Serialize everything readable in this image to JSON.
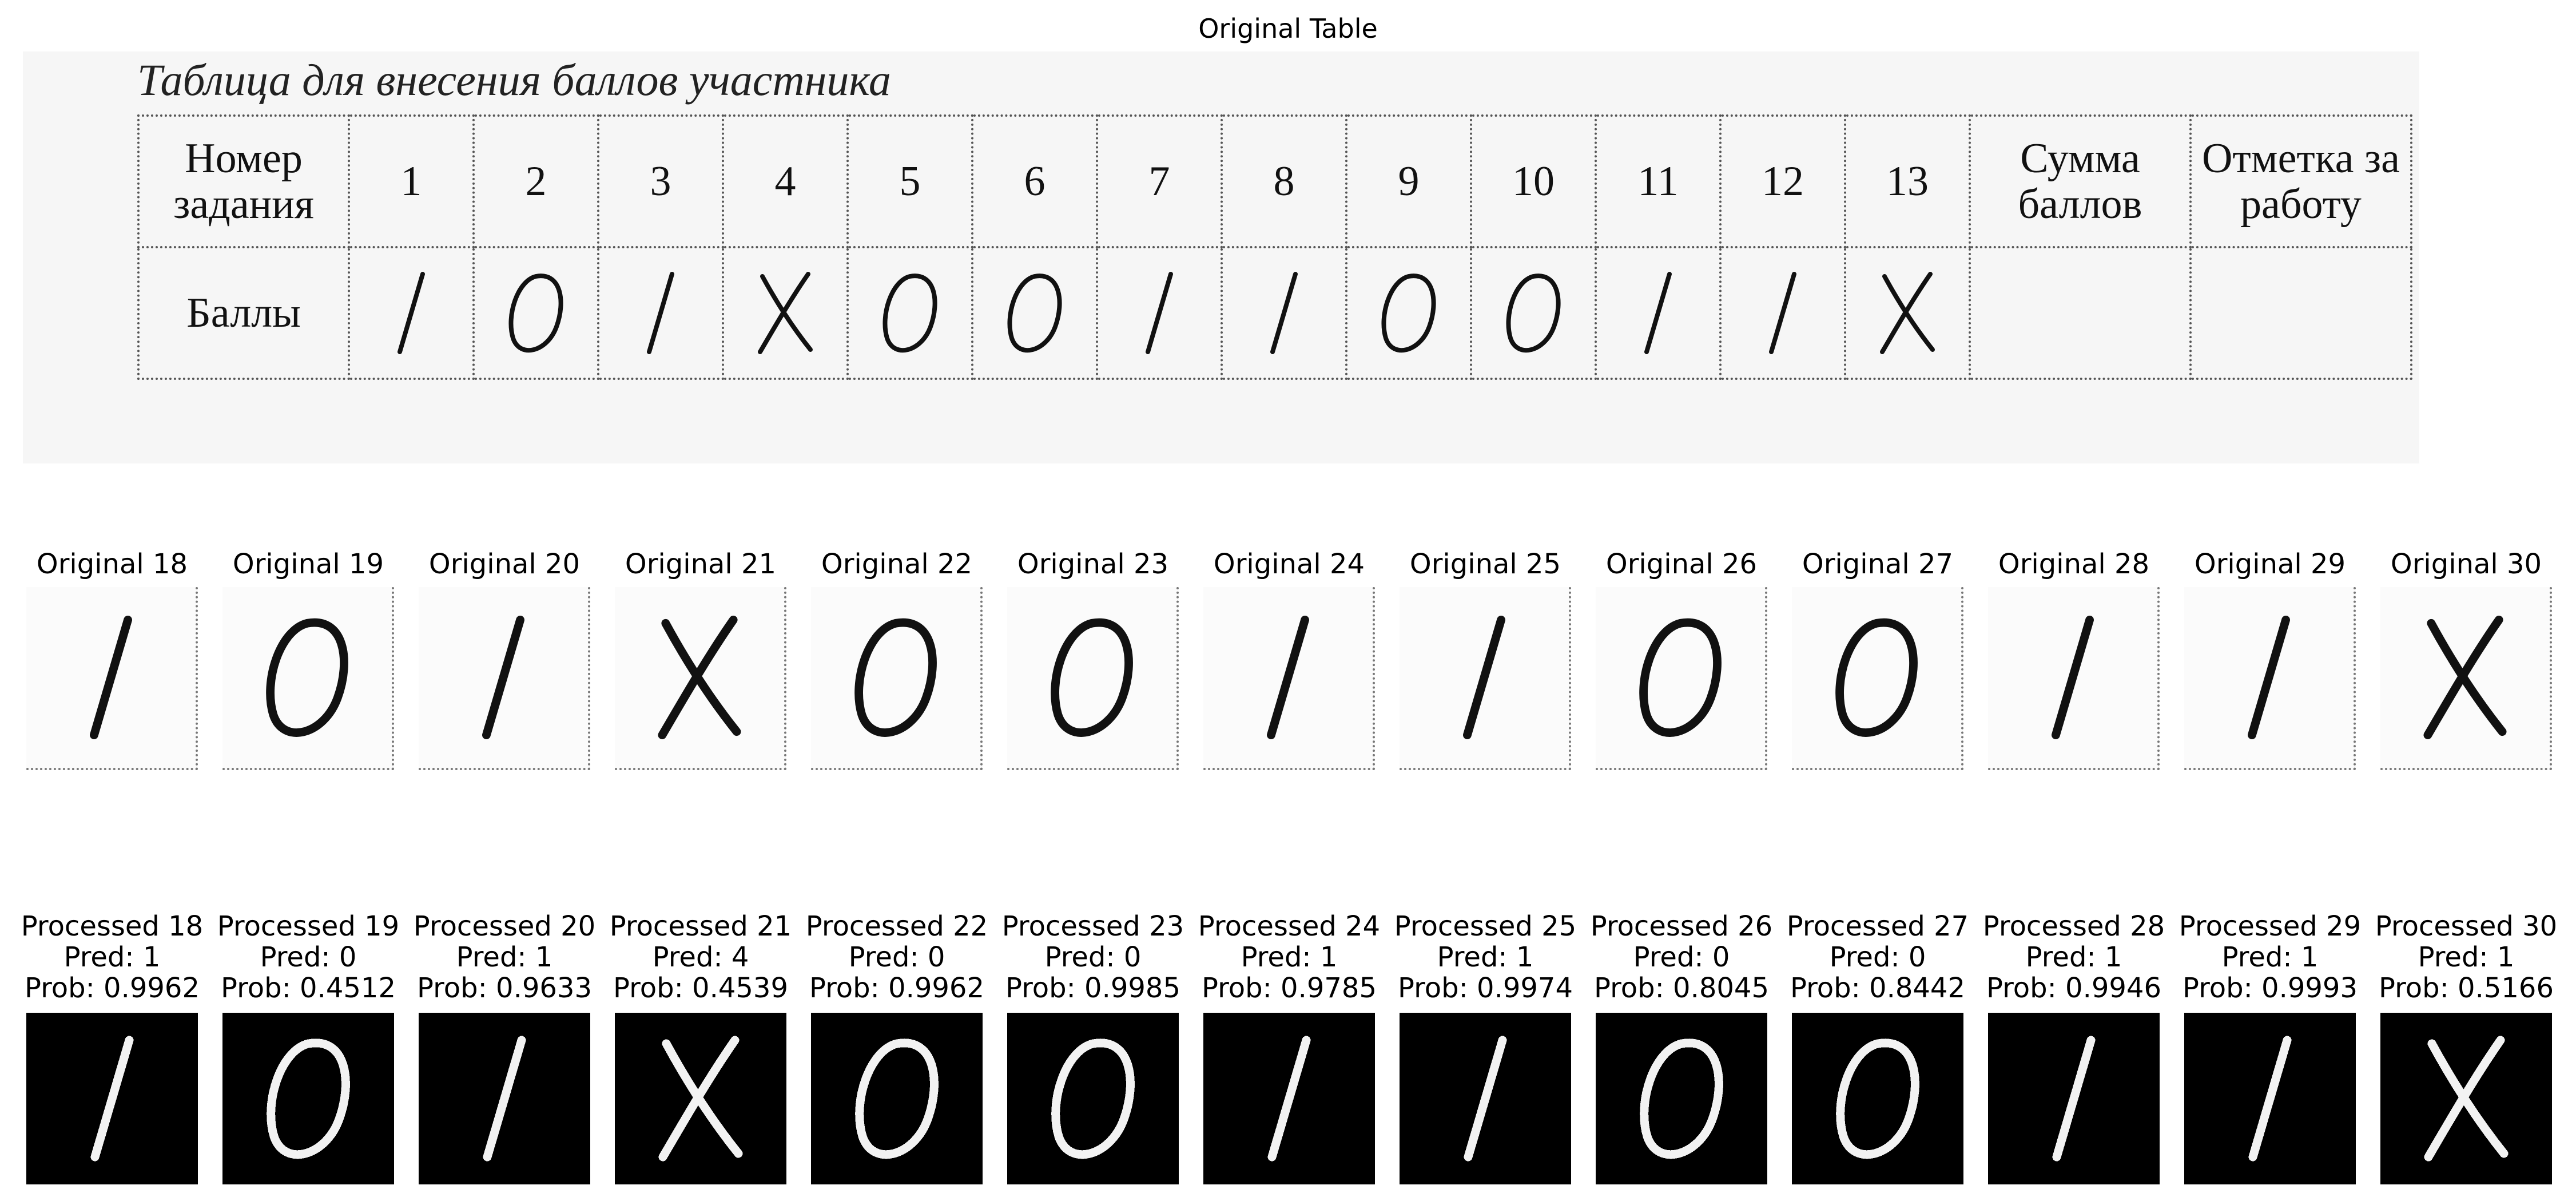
{
  "figure": {
    "table_title": "Original Table"
  },
  "scan": {
    "caption": "Таблица для внесения баллов участника",
    "row_header_1": "Номер задания",
    "row_header_2": "Баллы",
    "task_numbers": [
      "1",
      "2",
      "3",
      "4",
      "5",
      "6",
      "7",
      "8",
      "9",
      "10",
      "11",
      "12",
      "13"
    ],
    "sum_header": "Сумма баллов",
    "mark_header": "Отметка за работу",
    "handwritten_scores": [
      "1",
      "0",
      "1",
      "X",
      "0",
      "0",
      "1",
      "1",
      "0",
      "0",
      "1",
      "1",
      "X"
    ]
  },
  "cells": [
    {
      "original": "Original 18",
      "processed": "Processed 18",
      "pred": "Pred: 1",
      "prob": "Prob: 0.9962",
      "glyph": "1"
    },
    {
      "original": "Original 19",
      "processed": "Processed 19",
      "pred": "Pred: 0",
      "prob": "Prob: 0.4512",
      "glyph": "0"
    },
    {
      "original": "Original 20",
      "processed": "Processed 20",
      "pred": "Pred: 1",
      "prob": "Prob: 0.9633",
      "glyph": "1"
    },
    {
      "original": "Original 21",
      "processed": "Processed 21",
      "pred": "Pred: 4",
      "prob": "Prob: 0.4539",
      "glyph": "X"
    },
    {
      "original": "Original 22",
      "processed": "Processed 22",
      "pred": "Pred: 0",
      "prob": "Prob: 0.9962",
      "glyph": "0"
    },
    {
      "original": "Original 23",
      "processed": "Processed 23",
      "pred": "Pred: 0",
      "prob": "Prob: 0.9985",
      "glyph": "0"
    },
    {
      "original": "Original 24",
      "processed": "Processed 24",
      "pred": "Pred: 1",
      "prob": "Prob: 0.9785",
      "glyph": "1"
    },
    {
      "original": "Original 25",
      "processed": "Processed 25",
      "pred": "Pred: 1",
      "prob": "Prob: 0.9974",
      "glyph": "1"
    },
    {
      "original": "Original 26",
      "processed": "Processed 26",
      "pred": "Pred: 0",
      "prob": "Prob: 0.8045",
      "glyph": "0"
    },
    {
      "original": "Original 27",
      "processed": "Processed 27",
      "pred": "Pred: 0",
      "prob": "Prob: 0.8442",
      "glyph": "0"
    },
    {
      "original": "Original 28",
      "processed": "Processed 28",
      "pred": "Pred: 1",
      "prob": "Prob: 0.9946",
      "glyph": "1"
    },
    {
      "original": "Original 29",
      "processed": "Processed 29",
      "pred": "Pred: 1",
      "prob": "Prob: 0.9993",
      "glyph": "1"
    },
    {
      "original": "Original 30",
      "processed": "Processed 30",
      "pred": "Pred: 1",
      "prob": "Prob: 0.5166",
      "glyph": "X"
    }
  ]
}
